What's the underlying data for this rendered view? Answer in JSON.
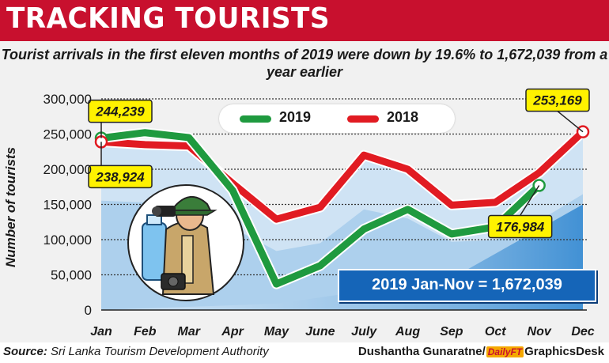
{
  "header": {
    "title": "TRACKING TOURISTS"
  },
  "chart_data": {
    "type": "line",
    "title": "Tourist arrivals in the first eleven months of 2019 were down by 19.6% to 1,672,039 from a year earlier",
    "ylabel": "Number of tourists",
    "xlabel": "",
    "categories": [
      "Jan",
      "Feb",
      "Mar",
      "Apr",
      "May",
      "June",
      "July",
      "Aug",
      "Sep",
      "Oct",
      "Nov",
      "Dec"
    ],
    "ylim": [
      0,
      300000
    ],
    "yticks": [
      0,
      50000,
      100000,
      150000,
      200000,
      250000,
      300000
    ],
    "ytick_labels": [
      "0",
      "50,000",
      "100,000",
      "150,000",
      "200,000",
      "250,000",
      "300,000"
    ],
    "grid": true,
    "legend_position": "top-center",
    "series": [
      {
        "name": "2019",
        "color": "#1f9a3f",
        "values": [
          244239,
          252000,
          245000,
          170000,
          37000,
          63000,
          115000,
          143000,
          108000,
          118000,
          176984,
          null
        ]
      },
      {
        "name": "2018",
        "color": "#e11b22",
        "values": [
          238924,
          235000,
          233000,
          180000,
          129000,
          146000,
          220000,
          200000,
          149000,
          153000,
          195000,
          253169
        ]
      }
    ],
    "callouts": [
      {
        "label": "244,239",
        "series": "2019",
        "category": "Jan"
      },
      {
        "label": "238,924",
        "series": "2018",
        "category": "Jan"
      },
      {
        "label": "176,984",
        "series": "2019",
        "category": "Nov"
      },
      {
        "label": "253,169",
        "series": "2018",
        "category": "Dec"
      }
    ]
  },
  "summary": {
    "text": "2019  Jan-Nov =  1,672,039"
  },
  "footer": {
    "source_label": "Source:",
    "source_text": " Sri Lanka Tourism Development Authority",
    "credit_name": "Dushantha Gunaratne/",
    "credit_daily": "Daily",
    "credit_ft": "FT",
    "credit_desk": "GraphicsDesk"
  },
  "colors": {
    "banner": "#c8102e",
    "panel": "#f1f1f1",
    "area_light": "#cfe3f4",
    "area_mid": "#a9cdec",
    "area_dark": "#3f93d6",
    "callout": "#fff200"
  },
  "illustration": {
    "icon": "tourist-with-camera-icon"
  }
}
